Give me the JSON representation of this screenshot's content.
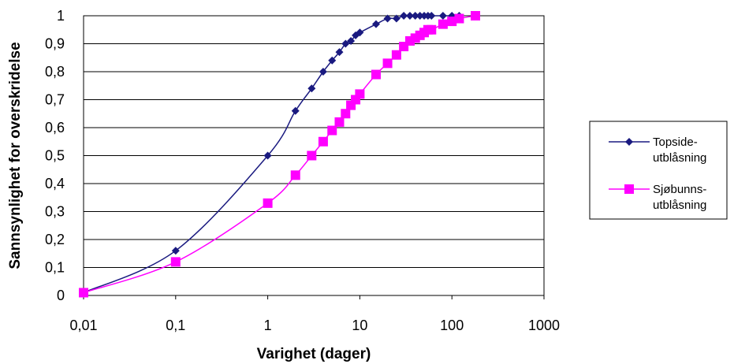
{
  "chart_data": {
    "type": "line",
    "title": "",
    "xlabel": "Varighet (dager)",
    "ylabel": "Sannsynlighet for overskridelse",
    "xscale": "log",
    "xlim": [
      0.01,
      1000
    ],
    "ylim": [
      0,
      1
    ],
    "x_ticks": [
      "0,01",
      "0,1",
      "1",
      "10",
      "100",
      "1000"
    ],
    "y_ticks": [
      "0",
      "0,1",
      "0,2",
      "0,3",
      "0,4",
      "0,5",
      "0,6",
      "0,7",
      "0,8",
      "0,9",
      "1"
    ],
    "grid": "horizontal",
    "legend": "right",
    "series": [
      {
        "name_lines": [
          "Topside-",
          "utblåsning"
        ],
        "color": "#1a1a80",
        "marker": "diamond",
        "x": [
          0.01,
          0.1,
          1,
          2,
          3,
          4,
          5,
          6,
          7,
          8,
          9,
          10,
          15,
          20,
          25,
          30,
          35,
          40,
          45,
          50,
          55,
          60,
          80,
          100,
          120
        ],
        "y": [
          0.01,
          0.16,
          0.5,
          0.66,
          0.74,
          0.8,
          0.84,
          0.87,
          0.9,
          0.91,
          0.93,
          0.94,
          0.97,
          0.99,
          0.99,
          1.0,
          1.0,
          1.0,
          1.0,
          1.0,
          1.0,
          1.0,
          1.0,
          1.0,
          1.0
        ]
      },
      {
        "name_lines": [
          "Sjøbunns-",
          "utblåsning"
        ],
        "color": "#ff00ff",
        "marker": "square",
        "x": [
          0.01,
          0.1,
          1,
          2,
          3,
          4,
          5,
          6,
          7,
          8,
          9,
          10,
          15,
          20,
          25,
          30,
          35,
          40,
          45,
          50,
          55,
          60,
          80,
          100,
          120,
          180
        ],
        "y": [
          0.01,
          0.12,
          0.33,
          0.43,
          0.5,
          0.55,
          0.59,
          0.62,
          0.65,
          0.68,
          0.7,
          0.72,
          0.79,
          0.83,
          0.86,
          0.89,
          0.91,
          0.92,
          0.93,
          0.94,
          0.95,
          0.95,
          0.97,
          0.98,
          0.99,
          1.0
        ]
      }
    ]
  }
}
